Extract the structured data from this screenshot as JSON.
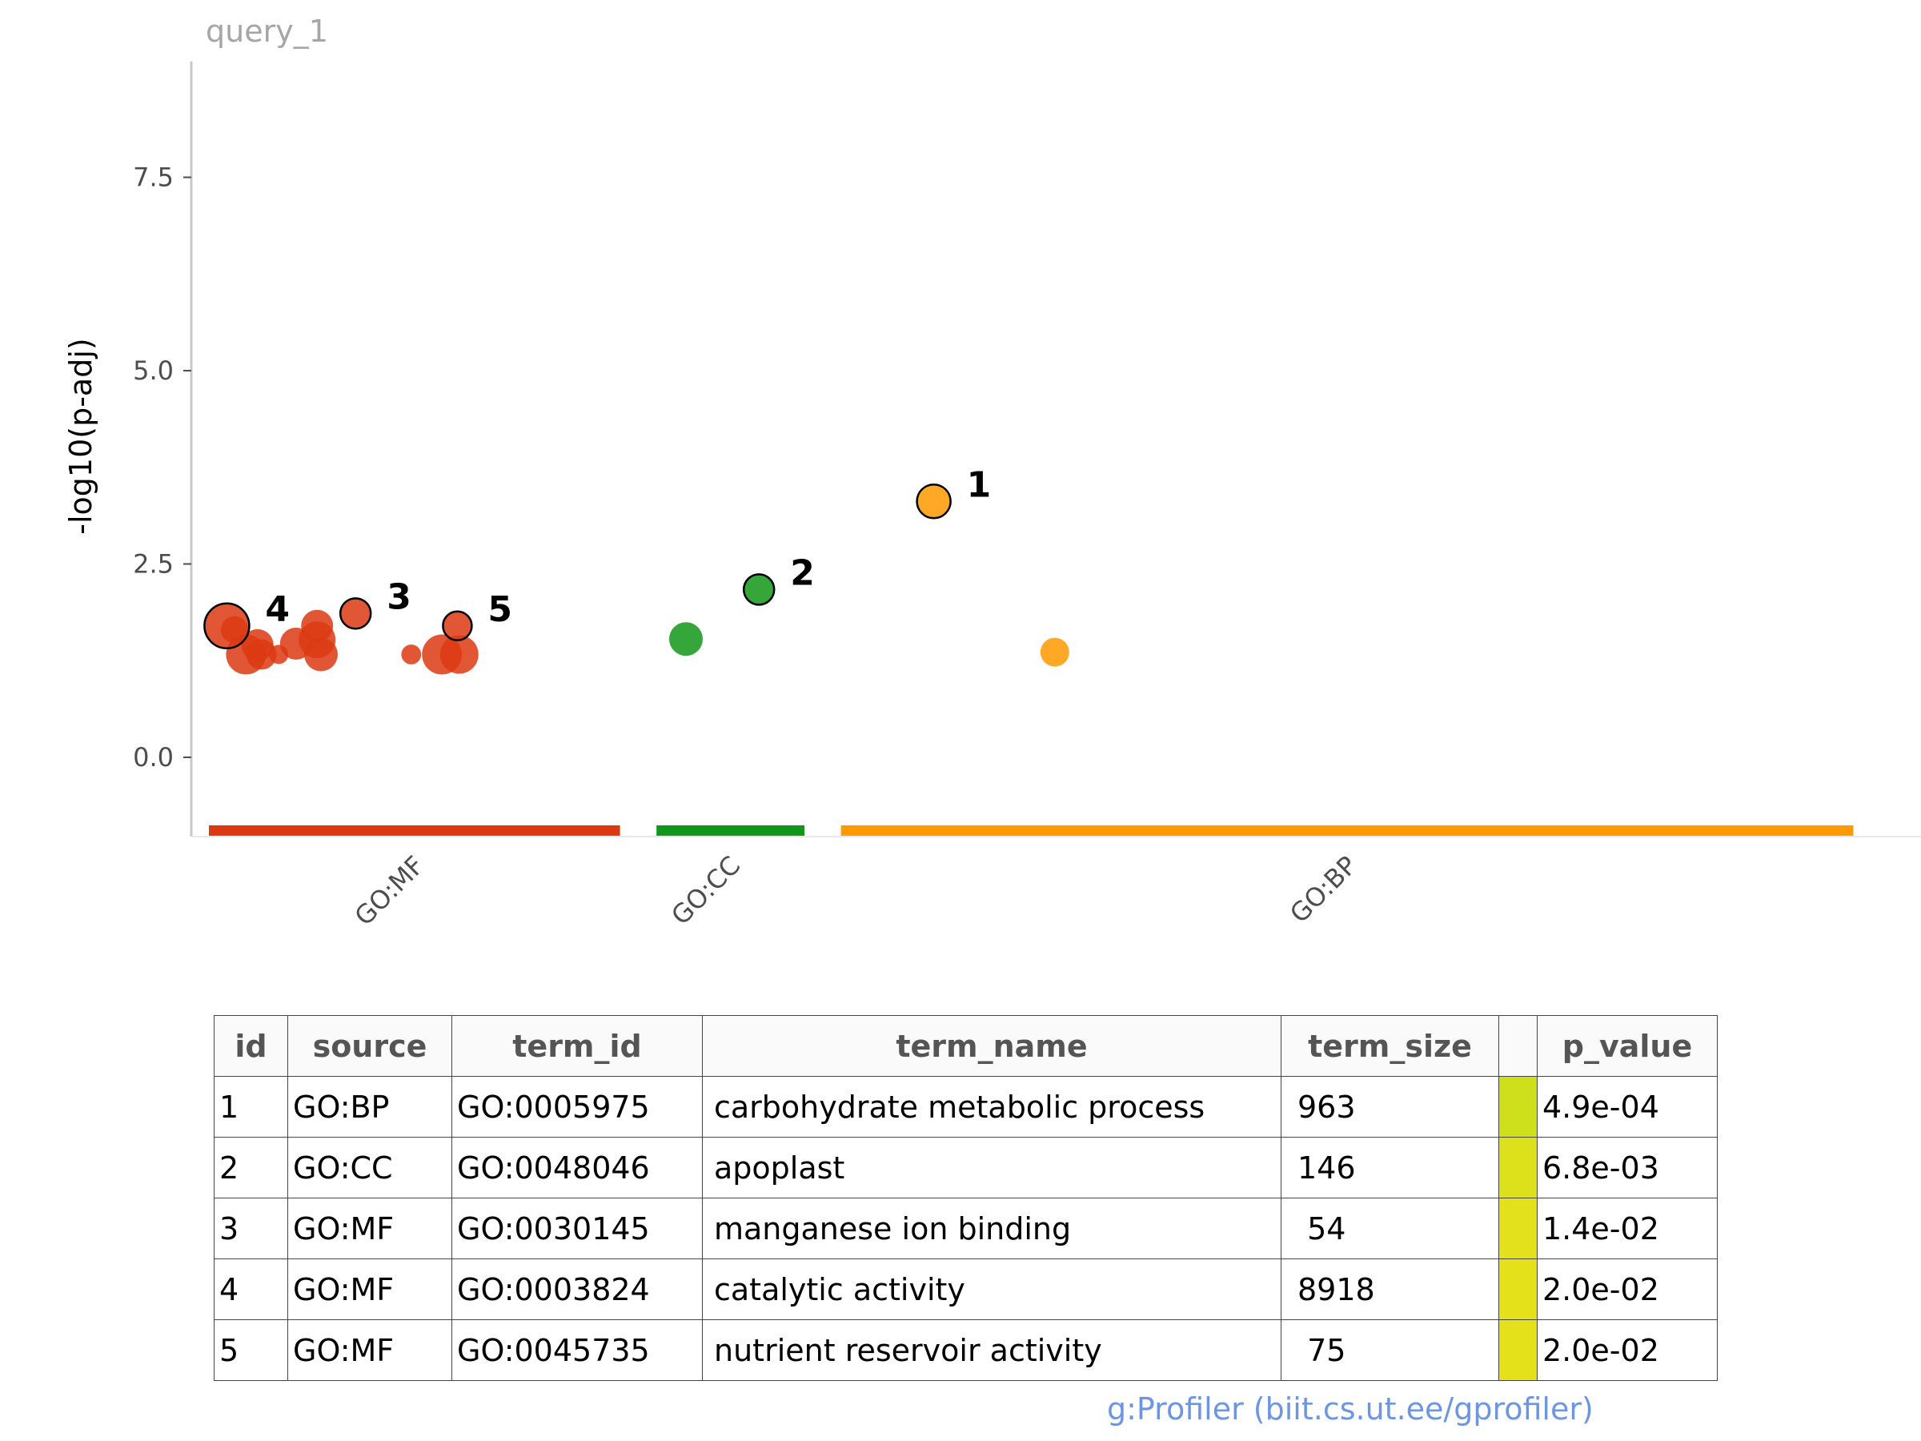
{
  "chart_data": {
    "type": "scatter",
    "query_label": "query_1",
    "ylabel": "-log10(p-adj)",
    "ylim": [
      -0.9,
      9
    ],
    "yticks": [
      0.0,
      2.5,
      5.0,
      7.5
    ],
    "ytick_labels": [
      "0.0",
      "2.5",
      "5.0",
      "7.5"
    ],
    "categories": [
      {
        "name": "GO:MF",
        "color": "#dc3912",
        "range": [
          0.0,
          0.214
        ]
      },
      {
        "name": "GO:CC",
        "color": "#109618",
        "range": [
          0.233,
          0.31
        ]
      },
      {
        "name": "GO:BP",
        "color": "#ff9900",
        "range": [
          0.329,
          0.856
        ]
      }
    ],
    "points": [
      {
        "source": "GO:MF",
        "x": 0.006,
        "y": 1.7,
        "size": 1.0,
        "highlight": true,
        "label": "4"
      },
      {
        "source": "GO:MF",
        "x": 0.01,
        "y": 1.65,
        "size": 0.45
      },
      {
        "source": "GO:MF",
        "x": 0.016,
        "y": 1.33,
        "size": 0.85
      },
      {
        "source": "GO:MF",
        "x": 0.022,
        "y": 1.45,
        "size": 0.6
      },
      {
        "source": "GO:MF",
        "x": 0.024,
        "y": 1.33,
        "size": 0.55
      },
      {
        "source": "GO:MF",
        "x": 0.033,
        "y": 1.33,
        "size": 0.2
      },
      {
        "source": "GO:MF",
        "x": 0.042,
        "y": 1.47,
        "size": 0.6
      },
      {
        "source": "GO:MF",
        "x": 0.053,
        "y": 1.7,
        "size": 0.6
      },
      {
        "source": "GO:MF",
        "x": 0.053,
        "y": 1.52,
        "size": 0.75
      },
      {
        "source": "GO:MF",
        "x": 0.055,
        "y": 1.33,
        "size": 0.65
      },
      {
        "source": "GO:MF",
        "x": 0.073,
        "y": 1.86,
        "size": 0.55,
        "highlight": true,
        "label": "3"
      },
      {
        "source": "GO:MF",
        "x": 0.102,
        "y": 1.33,
        "size": 0.22
      },
      {
        "source": "GO:MF",
        "x": 0.118,
        "y": 1.33,
        "size": 0.85
      },
      {
        "source": "GO:MF",
        "x": 0.127,
        "y": 1.33,
        "size": 0.8
      },
      {
        "source": "GO:MF",
        "x": 0.126,
        "y": 1.7,
        "size": 0.5,
        "highlight": true,
        "label": "5"
      },
      {
        "source": "GO:CC",
        "x": 0.245,
        "y": 1.53,
        "size": 0.65
      },
      {
        "source": "GO:CC",
        "x": 0.283,
        "y": 2.17,
        "size": 0.55,
        "highlight": true,
        "label": "2"
      },
      {
        "source": "GO:BP",
        "x": 0.374,
        "y": 3.31,
        "size": 0.65,
        "highlight": true,
        "label": "1"
      },
      {
        "source": "GO:BP",
        "x": 0.437,
        "y": 1.36,
        "size": 0.5
      }
    ]
  },
  "table": {
    "headers": [
      "id",
      "source",
      "term_id",
      "term_name",
      "term_size",
      "",
      "p_value"
    ],
    "rows": [
      {
        "id": "1",
        "source": "GO:BP",
        "term_id": "GO:0005975",
        "term_name": "carbohydrate metabolic process",
        "term_size": "963",
        "p_color": "#cde01b",
        "p_value": "4.9e-04"
      },
      {
        "id": "2",
        "source": "GO:CC",
        "term_id": "GO:0048046",
        "term_name": "apoplast",
        "term_size": "146",
        "p_color": "#dde11b",
        "p_value": "6.8e-03"
      },
      {
        "id": "3",
        "source": "GO:MF",
        "term_id": "GO:0030145",
        "term_name": "manganese ion binding",
        "term_size": " 54",
        "p_color": "#e2e11b",
        "p_value": "1.4e-02"
      },
      {
        "id": "4",
        "source": "GO:MF",
        "term_id": "GO:0003824",
        "term_name": "catalytic activity",
        "term_size": "8918",
        "p_color": "#e4e11b",
        "p_value": "2.0e-02"
      },
      {
        "id": "5",
        "source": "GO:MF",
        "term_id": "GO:0045735",
        "term_name": "nutrient reservoir activity",
        "term_size": " 75",
        "p_color": "#e4e11b",
        "p_value": "2.0e-02"
      }
    ]
  },
  "credit": "g:Profiler (biit.cs.ut.ee/gprofiler)"
}
